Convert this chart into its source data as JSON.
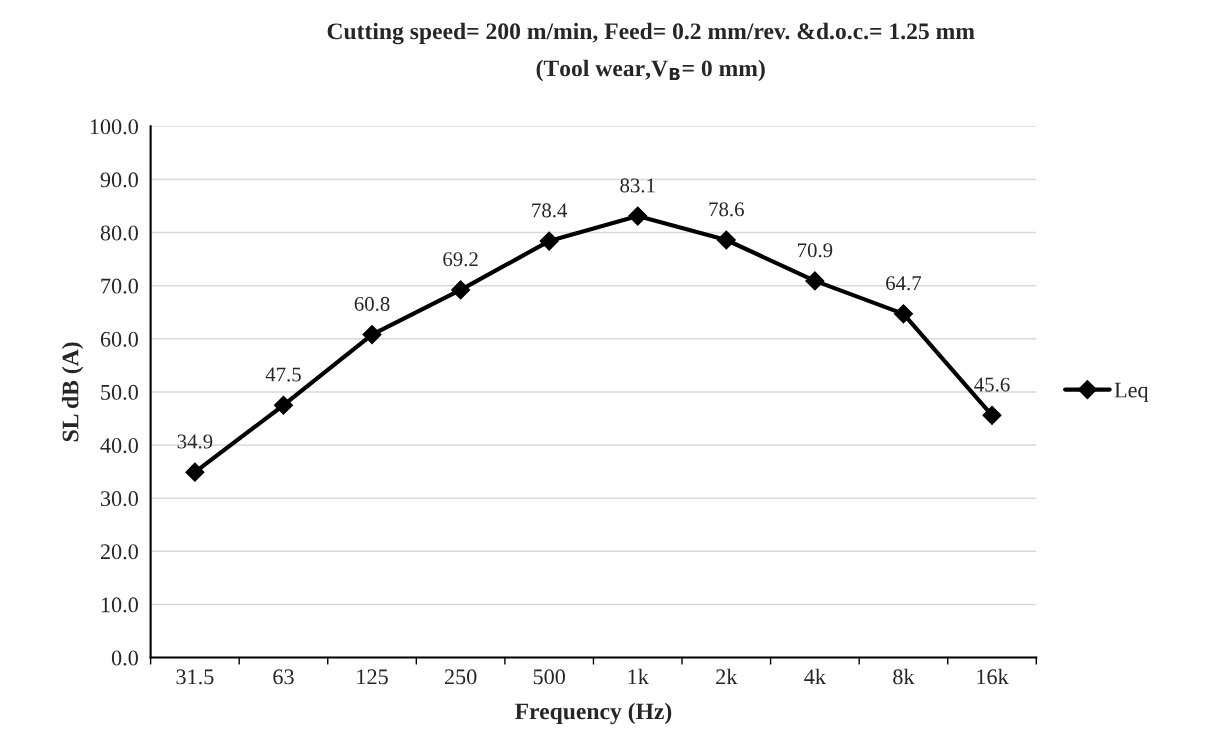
{
  "chart_data": {
    "type": "line",
    "title": "Cutting speed= 200 m/min, Feed= 0.2 mm/rev. &d.o.c.= 1.25 mm",
    "subtitle": "(Tool wear,V$_{B}$= 0 mm)",
    "xlabel": "Frequency (Hz)",
    "ylabel": "SL dB (A)",
    "categories": [
      "31.5",
      "63",
      "125",
      "250",
      "500",
      "1k",
      "2k",
      "4k",
      "8k",
      "16k"
    ],
    "series": [
      {
        "name": "Leq",
        "color": "#000000",
        "values": [
          34.9,
          47.5,
          60.8,
          69.2,
          78.4,
          83.1,
          78.6,
          70.9,
          64.7,
          45.6
        ]
      }
    ],
    "ylim": [
      0,
      100
    ],
    "yticks": [
      {
        "value": 0,
        "label": "0.0"
      },
      {
        "value": 10,
        "label": "10.0"
      },
      {
        "value": 20,
        "label": "20.0"
      },
      {
        "value": 30,
        "label": "30.0"
      },
      {
        "value": 40,
        "label": "40.0"
      },
      {
        "value": 50,
        "label": "50.0"
      },
      {
        "value": 60,
        "label": "60.0"
      },
      {
        "value": 70,
        "label": "70.0"
      },
      {
        "value": 80,
        "label": "80.0"
      },
      {
        "value": 90,
        "label": "90.0"
      },
      {
        "value": 100,
        "label": "100.0"
      }
    ],
    "grid": "y",
    "legend": "right",
    "marker": "diamond",
    "line_style": "solid",
    "data_labels": true
  }
}
